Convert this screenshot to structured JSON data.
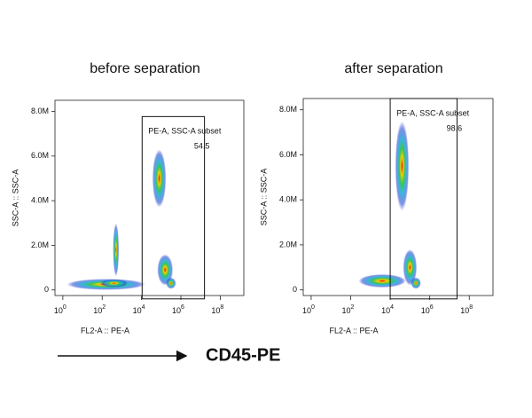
{
  "chart_data": [
    {
      "type": "scatter",
      "title": "before separation",
      "xlabel": "FL2-A :: PE-A",
      "ylabel": "SSC-A :: SSC-A",
      "xlim": [
        -0.4,
        9.2
      ],
      "ylim": [
        -250000,
        8500000
      ],
      "xticks": [
        {
          "value": 0,
          "label": "10",
          "sup": "0"
        },
        {
          "value": 2,
          "label": "10",
          "sup": "2"
        },
        {
          "value": 4,
          "label": "10",
          "sup": "4"
        },
        {
          "value": 6,
          "label": "10",
          "sup": "6"
        },
        {
          "value": 8,
          "label": "10",
          "sup": "8"
        }
      ],
      "yticks": [
        0,
        {
          "value": 2000000,
          "label": "2.0M"
        },
        {
          "value": 4000000,
          "label": "4.0M"
        },
        {
          "value": 6000000,
          "label": "6.0M"
        },
        {
          "value": 8000000,
          "label": "8.0M"
        }
      ],
      "populations": [
        {
          "x": 2.2,
          "y": 250000,
          "x_spread": 2.0,
          "y_spread": 250000
        },
        {
          "x": 2.6,
          "y": 300000,
          "x_spread": 0.7,
          "y_spread": 180000
        },
        {
          "x": 2.7,
          "y": 1800000,
          "x_spread": 0.15,
          "y_spread": 1200000
        },
        {
          "x": 4.9,
          "y": 5000000,
          "x_spread": 0.35,
          "y_spread": 1300000
        },
        {
          "x": 5.2,
          "y": 900000,
          "x_spread": 0.4,
          "y_spread": 700000
        },
        {
          "x": 5.5,
          "y": 300000,
          "x_spread": 0.25,
          "y_spread": 250000
        }
      ],
      "gate": {
        "name": "PE-A, SSC-A subset",
        "percent": 54.5,
        "x": [
          4.03,
          7.2
        ],
        "y": [
          -400000,
          7770000
        ]
      }
    },
    {
      "type": "scatter",
      "title": "after separation",
      "xlabel": "FL2-A :: PE-A",
      "ylabel": "SSC-A :: SSC-A",
      "xlim": [
        -0.4,
        9.2
      ],
      "ylim": [
        -250000,
        8500000
      ],
      "xticks": [
        {
          "value": 0,
          "label": "10",
          "sup": "0"
        },
        {
          "value": 2,
          "label": "10",
          "sup": "2"
        },
        {
          "value": 4,
          "label": "10",
          "sup": "4"
        },
        {
          "value": 6,
          "label": "10",
          "sup": "6"
        },
        {
          "value": 8,
          "label": "10",
          "sup": "8"
        }
      ],
      "yticks": [
        0,
        {
          "value": 2000000,
          "label": "2.0M"
        },
        {
          "value": 4000000,
          "label": "4.0M"
        },
        {
          "value": 6000000,
          "label": "6.0M"
        },
        {
          "value": 8000000,
          "label": "8.0M"
        }
      ],
      "populations": [
        {
          "x": 3.6,
          "y": 400000,
          "x_spread": 1.2,
          "y_spread": 300000
        },
        {
          "x": 4.6,
          "y": 5500000,
          "x_spread": 0.35,
          "y_spread": 2000000
        },
        {
          "x": 5.0,
          "y": 1000000,
          "x_spread": 0.35,
          "y_spread": 800000
        },
        {
          "x": 5.3,
          "y": 300000,
          "x_spread": 0.25,
          "y_spread": 250000
        }
      ],
      "gate": {
        "name": "PE-A, SSC-A subset",
        "percent": 98.6,
        "x": [
          4.0,
          7.38
        ],
        "y": [
          -400000,
          8500000
        ]
      }
    }
  ],
  "annotation": "CD45-PE"
}
